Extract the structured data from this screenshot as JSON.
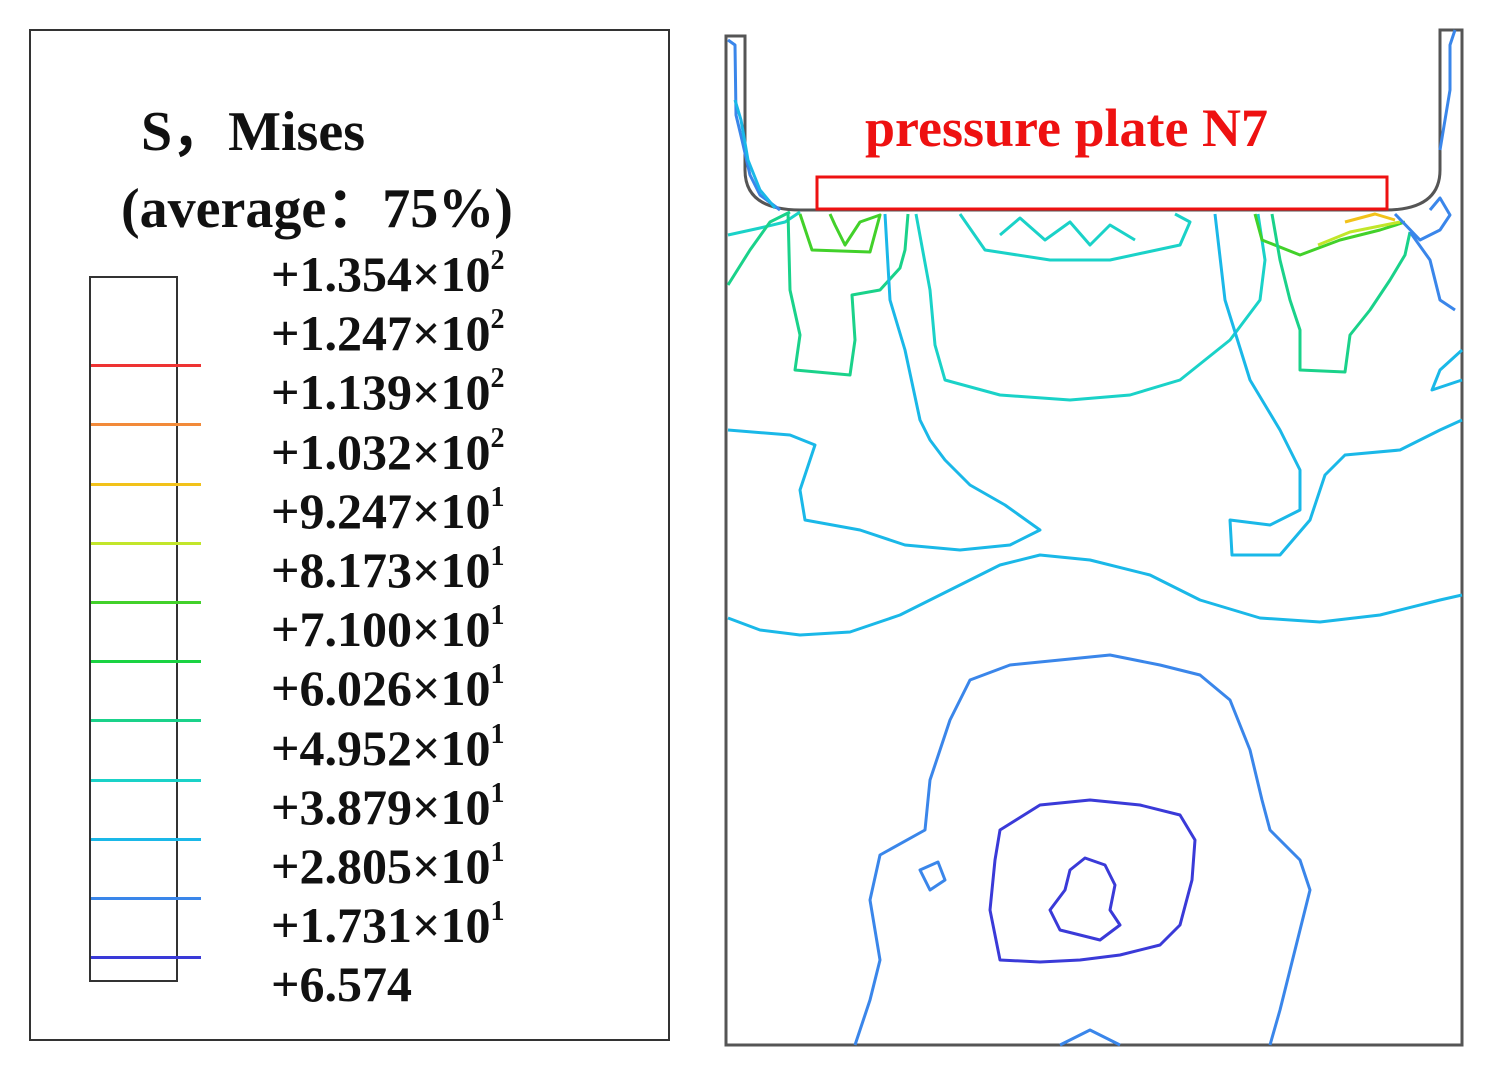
{
  "legend": {
    "title": "S，Mises",
    "subtitle": "(average：75%)",
    "levels": [
      {
        "mantissa": "+1.354×10",
        "exponent": "2",
        "color": ""
      },
      {
        "mantissa": "+1.247×10",
        "exponent": "2",
        "color": "#ee3333"
      },
      {
        "mantissa": "+1.139×10",
        "exponent": "2",
        "color": "#f28a3a"
      },
      {
        "mantissa": "+1.032×10",
        "exponent": "2",
        "color": "#f2c21a"
      },
      {
        "mantissa": "+9.247×10",
        "exponent": "1",
        "color": "#c2e62a"
      },
      {
        "mantissa": "+8.173×10",
        "exponent": "1",
        "color": "#42d12a"
      },
      {
        "mantissa": "+7.100×10",
        "exponent": "1",
        "color": "#1ad342"
      },
      {
        "mantissa": "+6.026×10",
        "exponent": "1",
        "color": "#1ad28a"
      },
      {
        "mantissa": "+4.952×10",
        "exponent": "1",
        "color": "#1ad2c8"
      },
      {
        "mantissa": "+3.879×10",
        "exponent": "1",
        "color": "#1ab8e8"
      },
      {
        "mantissa": "+2.805×10",
        "exponent": "1",
        "color": "#3a86ea"
      },
      {
        "mantissa": "+1.731×10",
        "exponent": "1",
        "color": "#3a3ad8"
      },
      {
        "mantissa": "+6.574",
        "exponent": "",
        "color": ""
      }
    ]
  },
  "plot": {
    "annotation": "pressure plate N7",
    "annotation_color": "#ee1111"
  }
}
